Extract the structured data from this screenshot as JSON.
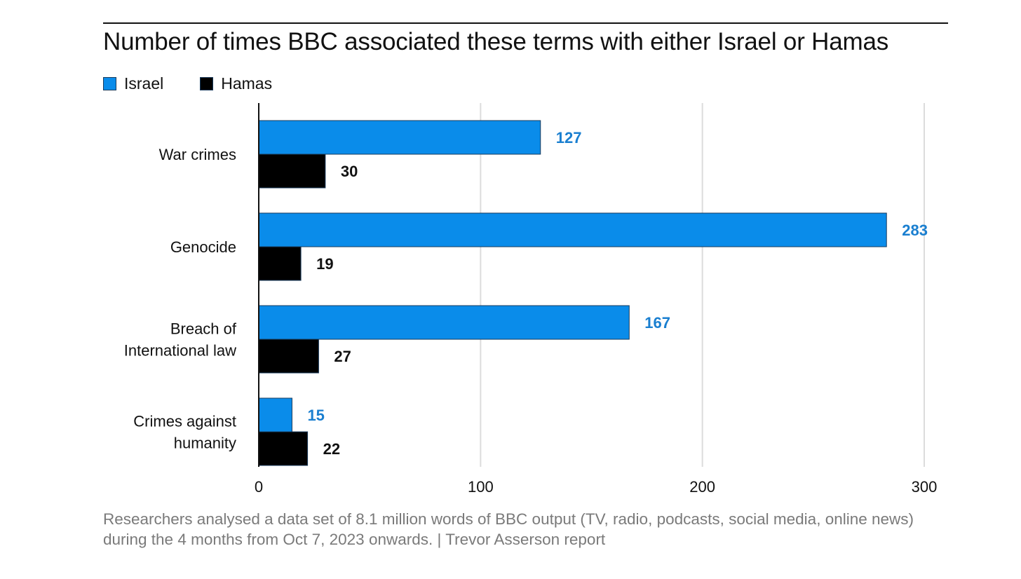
{
  "colors": {
    "israel": "#0a8cea",
    "hamas": "#000000",
    "israel_label": "#1a7fd0",
    "hamas_label": "#111111",
    "grid": "#dcdcdc",
    "axis": "#111111"
  },
  "chart_data": {
    "type": "bar",
    "orientation": "horizontal",
    "title": "Number of times BBC associated these terms with either Israel or Hamas",
    "categories": [
      [
        "War crimes"
      ],
      [
        "Genocide"
      ],
      [
        "Breach of",
        "International law"
      ],
      [
        "Crimes against",
        "humanity"
      ]
    ],
    "series": [
      {
        "name": "Israel",
        "values": [
          127,
          283,
          167,
          15
        ]
      },
      {
        "name": "Hamas",
        "values": [
          30,
          19,
          27,
          22
        ]
      }
    ],
    "x_ticks": [
      "0",
      "100",
      "200",
      "300"
    ],
    "xlim": [
      0,
      300
    ],
    "grid": true,
    "legend_position": "top-left",
    "xlabel": "",
    "ylabel": ""
  },
  "footnote": {
    "text": "Researchers analysed a data set of 8.1 million words of BBC output (TV, radio, podcasts, social media, online news) during the 4 months from Oct 7, 2023 onwards.  | Trevor Asserson report"
  }
}
